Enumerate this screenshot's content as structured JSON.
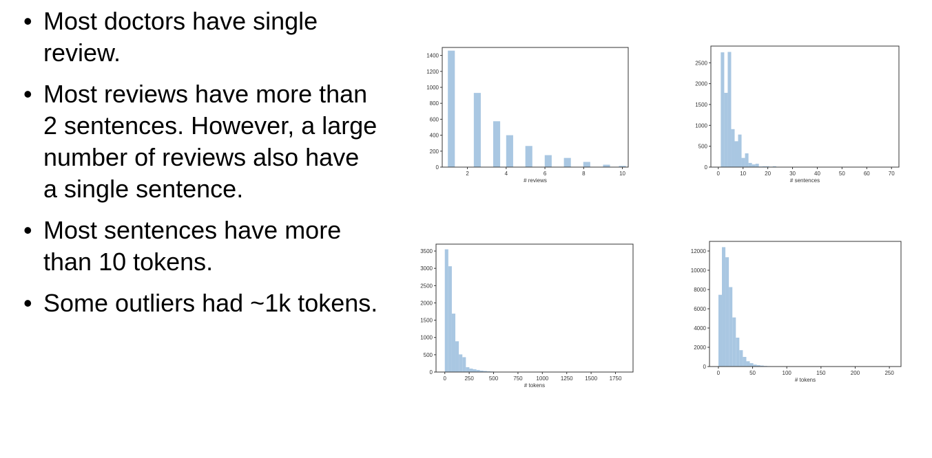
{
  "bullets": [
    "Most doctors have single review.",
    "Most reviews have more than 2 sentences. However, a large number of reviews also have a single sentence.",
    "Most sentences have more than 10 tokens.",
    "Some outliers had ~1k tokens."
  ],
  "chart_data": [
    {
      "type": "bar",
      "xlabel": "# reviews",
      "xlim": [
        0.7,
        10.3
      ],
      "ylim": [
        0,
        1500
      ],
      "xticks": [
        2,
        4,
        6,
        8,
        10
      ],
      "yticks": [
        0,
        200,
        400,
        600,
        800,
        1000,
        1200,
        1400
      ],
      "bin_width": 0.36,
      "x": [
        1.17,
        1.5,
        2.51,
        2.86,
        3.51,
        4.18,
        4.52,
        5.17,
        5.5,
        6.17,
        6.5,
        7.16,
        7.52,
        8.16,
        8.5,
        9.18,
        9.52,
        10.0
      ],
      "values": [
        1460,
        0,
        930,
        0,
        575,
        400,
        0,
        265,
        0,
        150,
        0,
        115,
        0,
        65,
        0,
        30,
        0,
        15
      ]
    },
    {
      "type": "bar",
      "xlabel": "# sentences",
      "xlim": [
        -3,
        73
      ],
      "ylim": [
        0,
        2900
      ],
      "xticks": [
        0,
        10,
        20,
        30,
        40,
        50,
        60,
        70
      ],
      "yticks": [
        0,
        500,
        1000,
        1500,
        2000,
        2500
      ],
      "bin_width": 1.4,
      "x": [
        1.7,
        3.1,
        4.5,
        5.9,
        7.3,
        8.7,
        10.1,
        11.5,
        12.9,
        14.3,
        15.7,
        17.1,
        18.5,
        19.9,
        21.3,
        22.7,
        24.1,
        25.5,
        26.9,
        28.3,
        29.7
      ],
      "values": [
        2750,
        1780,
        2760,
        910,
        620,
        780,
        220,
        330,
        100,
        65,
        80,
        15,
        20,
        20,
        10,
        20,
        5,
        5,
        5,
        5,
        5
      ]
    },
    {
      "type": "bar",
      "xlabel": "# tokens",
      "xlim": [
        -90,
        1930
      ],
      "ylim": [
        0,
        3700
      ],
      "xticks": [
        0,
        250,
        500,
        750,
        1000,
        1250,
        1500,
        1750
      ],
      "yticks": [
        0,
        500,
        1000,
        1500,
        2000,
        2500,
        3000,
        3500
      ],
      "bin_width": 36,
      "x": [
        18,
        54,
        90,
        126,
        162,
        198,
        234,
        270,
        306,
        342,
        378,
        414,
        450,
        486,
        522,
        558,
        594,
        630,
        666,
        702,
        738,
        774,
        810,
        846,
        882
      ],
      "values": [
        3550,
        3060,
        1690,
        890,
        510,
        430,
        140,
        100,
        80,
        60,
        40,
        30,
        20,
        15,
        10,
        8,
        6,
        5,
        4,
        3,
        3,
        2,
        2,
        2,
        2
      ]
    },
    {
      "type": "bar",
      "xlabel": "# tokens",
      "xlim": [
        -13,
        267
      ],
      "ylim": [
        0,
        13000
      ],
      "xticks": [
        0,
        50,
        100,
        150,
        200,
        250
      ],
      "yticks": [
        0,
        2000,
        4000,
        6000,
        8000,
        10000,
        12000
      ],
      "bin_width": 5.1,
      "x": [
        2.6,
        7.7,
        12.8,
        17.9,
        23.0,
        28.1,
        33.2,
        38.3,
        43.4,
        48.5,
        53.6,
        58.7,
        63.8,
        68.9,
        74.0,
        79.1,
        84.2,
        89.3,
        94.4,
        99.5
      ],
      "values": [
        7450,
        12400,
        11350,
        8250,
        5100,
        3000,
        1700,
        1000,
        550,
        350,
        200,
        150,
        100,
        60,
        40,
        30,
        20,
        15,
        10,
        5
      ]
    }
  ]
}
